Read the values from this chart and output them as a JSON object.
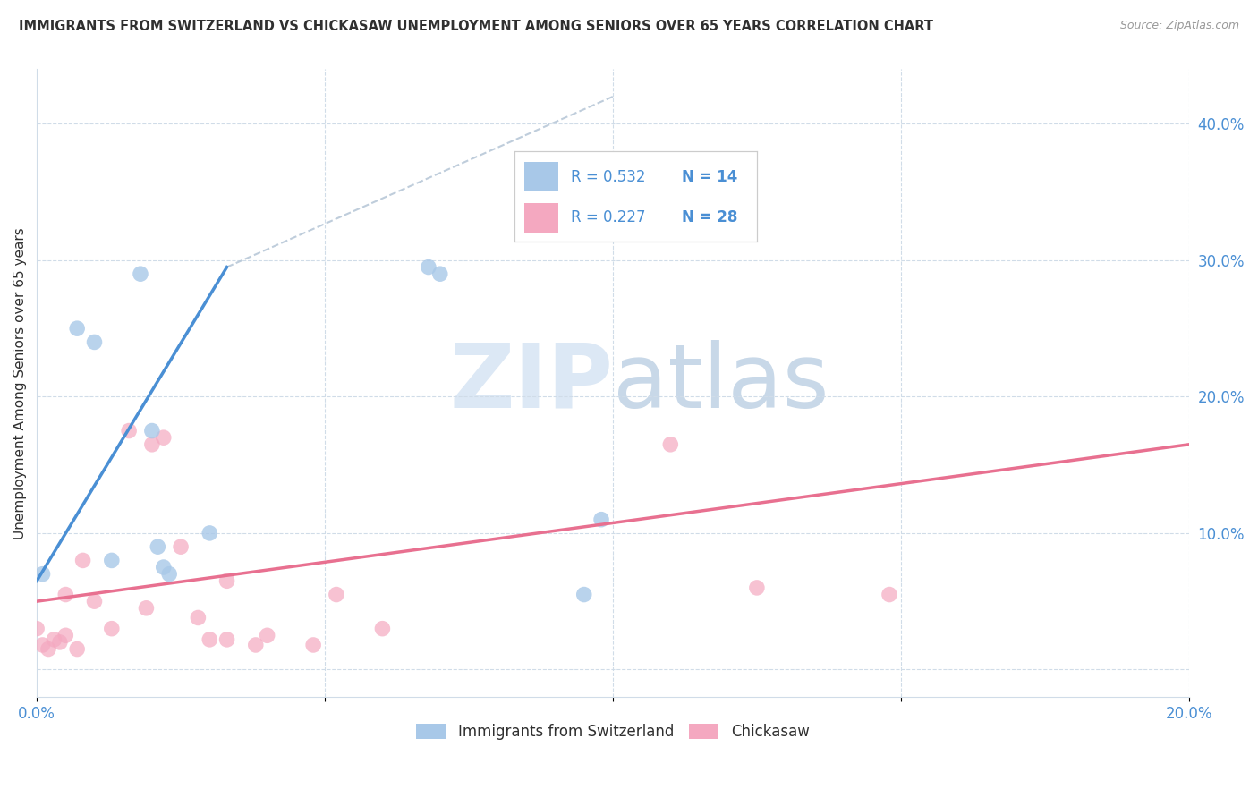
{
  "title": "IMMIGRANTS FROM SWITZERLAND VS CHICKASAW UNEMPLOYMENT AMONG SENIORS OVER 65 YEARS CORRELATION CHART",
  "source": "Source: ZipAtlas.com",
  "ylabel": "Unemployment Among Seniors over 65 years",
  "xlim": [
    0.0,
    0.2
  ],
  "ylim": [
    -0.02,
    0.44
  ],
  "x_ticks": [
    0.0,
    0.05,
    0.1,
    0.15,
    0.2
  ],
  "x_tick_labels": [
    "0.0%",
    "",
    "",
    "",
    "20.0%"
  ],
  "y_ticks_right": [
    0.0,
    0.1,
    0.2,
    0.3,
    0.4
  ],
  "y_tick_labels_right": [
    "",
    "10.0%",
    "20.0%",
    "30.0%",
    "40.0%"
  ],
  "legend_label1": "Immigrants from Switzerland",
  "legend_label2": "Chickasaw",
  "R1": "0.532",
  "N1": "14",
  "R2": "0.227",
  "N2": "28",
  "color_blue": "#a8c8e8",
  "color_pink": "#f4a8c0",
  "line_color_blue": "#4a8fd4",
  "line_color_pink": "#e87090",
  "line_color_dashed": "#b8c8d8",
  "background_color": "#ffffff",
  "grid_color": "#d0dce8",
  "title_color": "#303030",
  "scatter_blue": {
    "x": [
      0.001,
      0.007,
      0.01,
      0.013,
      0.018,
      0.02,
      0.021,
      0.022,
      0.023,
      0.03,
      0.068,
      0.07,
      0.095,
      0.098
    ],
    "y": [
      0.07,
      0.25,
      0.24,
      0.08,
      0.29,
      0.175,
      0.09,
      0.075,
      0.07,
      0.1,
      0.295,
      0.29,
      0.055,
      0.11
    ]
  },
  "scatter_pink": {
    "x": [
      0.0,
      0.001,
      0.002,
      0.003,
      0.004,
      0.005,
      0.005,
      0.007,
      0.008,
      0.01,
      0.013,
      0.016,
      0.019,
      0.02,
      0.022,
      0.025,
      0.028,
      0.03,
      0.033,
      0.033,
      0.038,
      0.04,
      0.048,
      0.052,
      0.06,
      0.11,
      0.125,
      0.148
    ],
    "y": [
      0.03,
      0.018,
      0.015,
      0.022,
      0.02,
      0.055,
      0.025,
      0.015,
      0.08,
      0.05,
      0.03,
      0.175,
      0.045,
      0.165,
      0.17,
      0.09,
      0.038,
      0.022,
      0.022,
      0.065,
      0.018,
      0.025,
      0.018,
      0.055,
      0.03,
      0.165,
      0.06,
      0.055
    ]
  },
  "reg_line_blue": {
    "x": [
      0.0,
      0.033
    ],
    "y": [
      0.065,
      0.295
    ]
  },
  "reg_line_pink": {
    "x": [
      0.0,
      0.2
    ],
    "y": [
      0.05,
      0.165
    ]
  },
  "dashed_line": {
    "x": [
      0.033,
      0.1
    ],
    "y": [
      0.295,
      0.42
    ]
  },
  "watermark_zip": "ZIP",
  "watermark_atlas": "atlas",
  "watermark_color": "#dce8f5"
}
